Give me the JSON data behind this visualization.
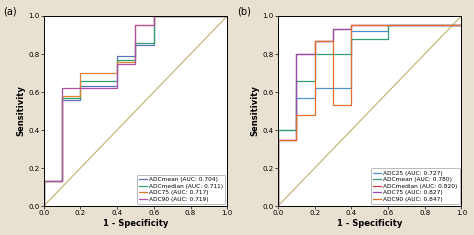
{
  "fig_width": 4.74,
  "fig_height": 2.35,
  "dpi": 100,
  "background_color": "#e8e0d0",
  "plot_bg_color": "#ffffff",
  "diagonal_color": "#c8b87a",
  "panel_a": {
    "label": "(a)",
    "curves": [
      {
        "name": "ADCmean (AUC: 0.704)",
        "color": "#6070c0",
        "fpr": [
          0.0,
          0.0,
          0.1,
          0.1,
          0.2,
          0.2,
          0.4,
          0.4,
          0.5,
          0.5,
          0.6,
          0.6,
          1.0
        ],
        "tpr": [
          0.0,
          0.13,
          0.13,
          0.56,
          0.56,
          0.63,
          0.63,
          0.79,
          0.79,
          0.85,
          0.85,
          1.0,
          1.0
        ]
      },
      {
        "name": "ADCmedian (AUC: 0.711)",
        "color": "#30a070",
        "fpr": [
          0.0,
          0.0,
          0.1,
          0.1,
          0.2,
          0.2,
          0.4,
          0.4,
          0.5,
          0.5,
          0.6,
          0.6,
          1.0
        ],
        "tpr": [
          0.0,
          0.13,
          0.13,
          0.57,
          0.57,
          0.66,
          0.66,
          0.77,
          0.77,
          0.86,
          0.86,
          1.0,
          1.0
        ]
      },
      {
        "name": "ADC75 (AUC: 0.717)",
        "color": "#e08030",
        "fpr": [
          0.0,
          0.0,
          0.1,
          0.1,
          0.2,
          0.2,
          0.4,
          0.4,
          0.5,
          0.5,
          0.6,
          0.6,
          1.0
        ],
        "tpr": [
          0.0,
          0.13,
          0.13,
          0.58,
          0.58,
          0.7,
          0.7,
          0.76,
          0.76,
          0.95,
          0.95,
          1.0,
          1.0
        ]
      },
      {
        "name": "ADC90 (AUC: 0.719)",
        "color": "#b050a0",
        "fpr": [
          0.0,
          0.0,
          0.1,
          0.1,
          0.2,
          0.2,
          0.4,
          0.4,
          0.5,
          0.5,
          0.6,
          0.6,
          1.0
        ],
        "tpr": [
          0.0,
          0.13,
          0.13,
          0.62,
          0.62,
          0.62,
          0.62,
          0.75,
          0.75,
          0.95,
          0.95,
          1.0,
          1.0
        ]
      }
    ],
    "xlabel": "1 - Specificity",
    "ylabel": "Sensitivity"
  },
  "panel_b": {
    "label": "(b)",
    "curves": [
      {
        "name": "ADC25 (AUC: 0.727)",
        "color": "#5090d0",
        "fpr": [
          0.0,
          0.0,
          0.1,
          0.1,
          0.2,
          0.2,
          0.4,
          0.4,
          0.6,
          0.6,
          1.0
        ],
        "tpr": [
          0.0,
          0.4,
          0.4,
          0.57,
          0.57,
          0.62,
          0.62,
          0.92,
          0.92,
          0.95,
          0.95
        ]
      },
      {
        "name": "ADCmean (AUC: 0.780)",
        "color": "#30a070",
        "fpr": [
          0.0,
          0.0,
          0.1,
          0.1,
          0.2,
          0.2,
          0.4,
          0.4,
          0.6,
          0.6,
          1.0
        ],
        "tpr": [
          0.0,
          0.4,
          0.4,
          0.66,
          0.66,
          0.8,
          0.8,
          0.88,
          0.88,
          0.95,
          0.95
        ]
      },
      {
        "name": "ADCmedian (AUC: 0.820)",
        "color": "#d04040",
        "fpr": [
          0.0,
          0.0,
          0.1,
          0.1,
          0.2,
          0.2,
          0.3,
          0.3,
          0.4,
          0.4,
          0.6,
          0.6,
          1.0
        ],
        "tpr": [
          0.0,
          0.35,
          0.35,
          0.8,
          0.8,
          0.87,
          0.87,
          0.93,
          0.93,
          0.95,
          0.95,
          0.95,
          0.95
        ]
      },
      {
        "name": "ADC75 (AUC: 0.827)",
        "color": "#9050b0",
        "fpr": [
          0.0,
          0.0,
          0.1,
          0.1,
          0.2,
          0.2,
          0.3,
          0.3,
          0.4,
          0.4,
          0.6,
          0.6,
          1.0
        ],
        "tpr": [
          0.0,
          0.35,
          0.35,
          0.8,
          0.8,
          0.87,
          0.87,
          0.93,
          0.93,
          0.95,
          0.95,
          0.95,
          0.95
        ]
      },
      {
        "name": "ADC90 (AUC: 0.847)",
        "color": "#e07030",
        "fpr": [
          0.0,
          0.0,
          0.1,
          0.1,
          0.2,
          0.2,
          0.3,
          0.3,
          0.4,
          0.4,
          1.0
        ],
        "tpr": [
          0.0,
          0.35,
          0.35,
          0.48,
          0.48,
          0.87,
          0.87,
          0.53,
          0.53,
          0.95,
          0.95
        ]
      }
    ],
    "xlabel": "1 - Specificity",
    "ylabel": "Sensitivity"
  },
  "xticks": [
    0.0,
    0.2,
    0.4,
    0.6,
    0.8,
    1.0
  ],
  "yticks": [
    0.0,
    0.2,
    0.4,
    0.6,
    0.8,
    1.0
  ],
  "xlim": [
    0.0,
    1.0
  ],
  "ylim": [
    0.0,
    1.0
  ]
}
